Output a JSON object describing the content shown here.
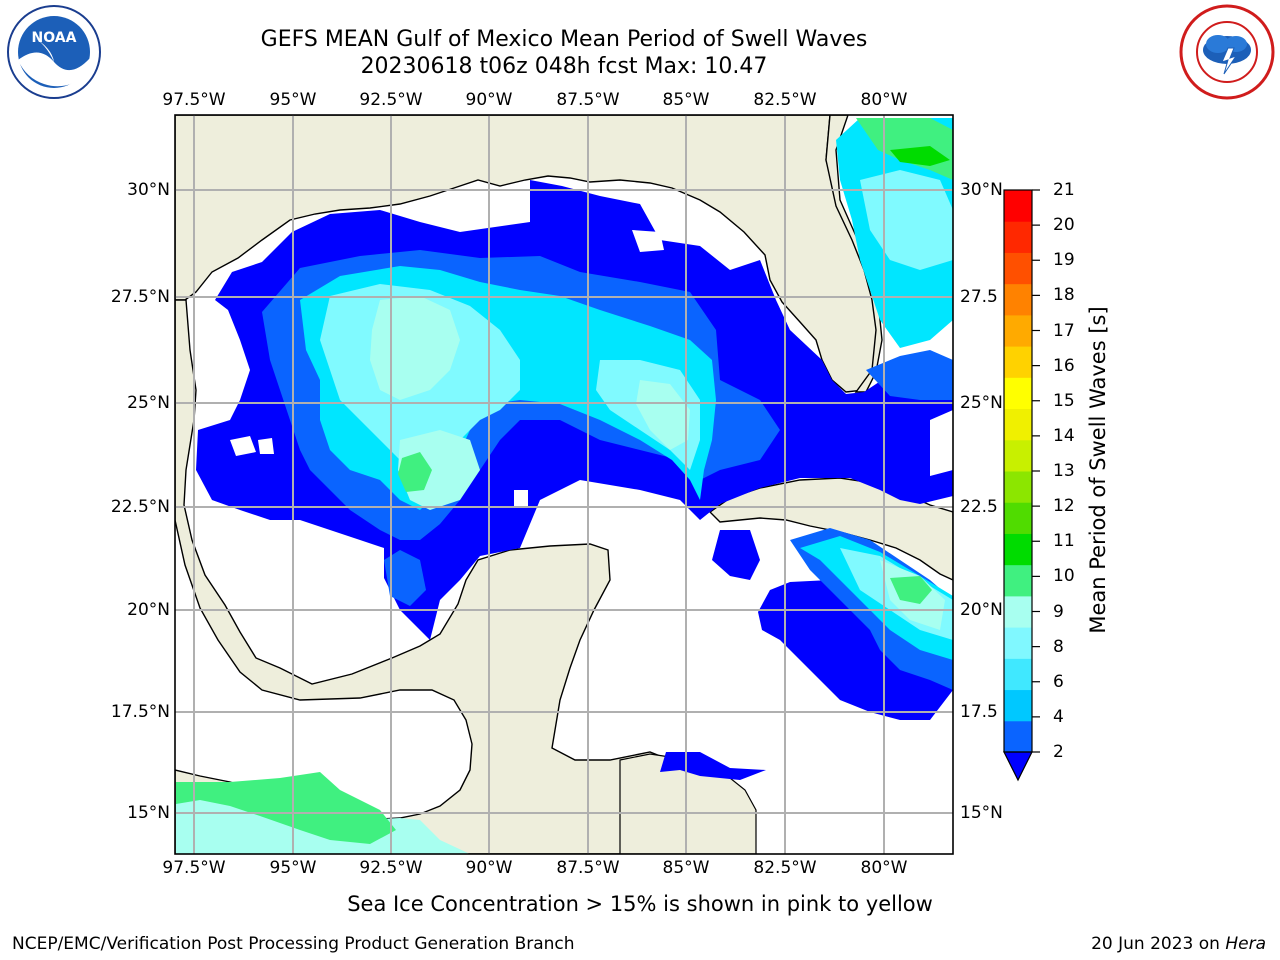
{
  "header": {
    "title_line1": "GEFS MEAN Gulf of Mexico Mean Period of Swell Waves",
    "title_line2": "20230618 t06z 048h fcst   Max: 10.47"
  },
  "logos": {
    "left": "NOAA",
    "right": "NATIONAL WEATHER SERVICE"
  },
  "axes": {
    "lon_labels": [
      "97.5°W",
      "95°W",
      "92.5°W",
      "90°W",
      "87.5°W",
      "85°W",
      "82.5°W",
      "80°W"
    ],
    "lat_labels_left": [
      "30°N",
      "27.5°N",
      "25°N",
      "22.5°N",
      "20°N",
      "17.5°N",
      "15°N"
    ],
    "lat_labels_right": [
      "30°N",
      "27.5",
      "25°N",
      "22.5",
      "20°N",
      "17.5",
      "15°N"
    ]
  },
  "colorbar": {
    "label": "Mean Period of Swell Waves [s]",
    "ticks": [
      "2",
      "4",
      "6",
      "8",
      "9",
      "10",
      "11",
      "12",
      "13",
      "14",
      "15",
      "16",
      "17",
      "18",
      "19",
      "20",
      "21"
    ],
    "colors": [
      "#0a64ff",
      "#00c8ff",
      "#40e8ff",
      "#80f8ff",
      "#a8fff0",
      "#40f080",
      "#00dc00",
      "#50dc00",
      "#8ce600",
      "#c8f000",
      "#f0f000",
      "#ffff00",
      "#ffd200",
      "#ffaa00",
      "#ff8200",
      "#ff5000",
      "#ff2800",
      "#ff0000"
    ],
    "extend_color": "#0000ff"
  },
  "colors": {
    "land": "#eeeedc",
    "grid": "#b0b0b0",
    "deep_blue": "#0000ff",
    "blue": "#0a64ff",
    "cyan": "#00e6ff",
    "light_cyan": "#80faff",
    "pale_cyan": "#a8fff0",
    "green": "#40f080"
  },
  "note": "Sea Ice Concentration > 15% is shown in pink to yellow",
  "footer": {
    "left": "NCEP/EMC/Verification Post Processing Product Generation Branch",
    "right_date": "20 Jun 2023 on ",
    "right_host": "Hera"
  }
}
